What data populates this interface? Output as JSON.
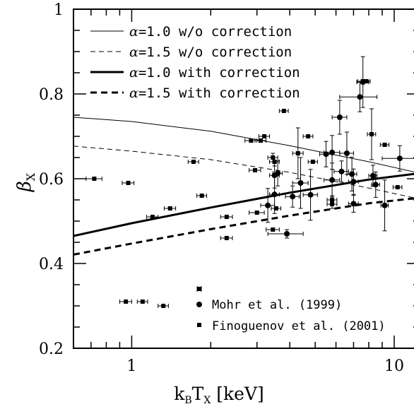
{
  "chart_data": {
    "type": "scatter",
    "xscale": "log",
    "xlim": [
      0.6,
      12.5
    ],
    "ylim": [
      0.2,
      1.0
    ],
    "xticks_major": [
      1,
      10
    ],
    "xtick_labels": [
      "1",
      "10"
    ],
    "yticks_major": [
      0.2,
      0.4,
      0.6,
      0.8,
      1.0
    ],
    "ytick_labels": [
      "0.2",
      "0.4",
      "0.6",
      "0.8",
      "1"
    ],
    "xlabel_parts": {
      "k": "k",
      "b": "B",
      "t": "T",
      "x": "X",
      "unit": " [keV]"
    },
    "ylabel_parts": {
      "beta": "β",
      "x": "X"
    },
    "legend": {
      "alpha_symbol": "α",
      "entries": [
        {
          "text": "=1.0 w/o correction",
          "style": "thin-solid"
        },
        {
          "text": "=1.5 w/o correction",
          "style": "thin-dashed"
        },
        {
          "text": "=1.0 with correction",
          "style": "thick-solid"
        },
        {
          "text": "=1.5 with correction",
          "style": "thick-dashed"
        }
      ],
      "placement": "top-left"
    },
    "marker_key": [
      {
        "marker": "circle",
        "text": "Mohr et al. (1999)"
      },
      {
        "marker": "square",
        "text": "Finoguenov et al. (2001)"
      }
    ],
    "curves": [
      {
        "style": "thin-solid",
        "x": [
          0.6,
          1,
          2,
          4,
          8,
          12.5
        ],
        "y": [
          0.745,
          0.735,
          0.712,
          0.678,
          0.64,
          0.613
        ]
      },
      {
        "style": "thin-dashed",
        "x": [
          0.6,
          1,
          2,
          4,
          8,
          12.5
        ],
        "y": [
          0.677,
          0.665,
          0.645,
          0.615,
          0.578,
          0.552
        ]
      },
      {
        "style": "thick-solid",
        "x": [
          0.6,
          1,
          2,
          4,
          8,
          12.5
        ],
        "y": [
          0.465,
          0.495,
          0.532,
          0.567,
          0.598,
          0.613
        ]
      },
      {
        "style": "thick-dashed",
        "x": [
          0.6,
          1,
          2,
          4,
          8,
          12.5
        ],
        "y": [
          0.421,
          0.447,
          0.481,
          0.513,
          0.542,
          0.555
        ]
      }
    ],
    "series": [
      {
        "marker": "circle",
        "points": [
          {
            "x": 3.5,
            "y": 0.608,
            "xe": 0.15,
            "ye": 0.03
          },
          {
            "x": 3.6,
            "y": 0.613,
            "xe": 0.15,
            "ye": 0.03
          },
          {
            "x": 3.5,
            "y": 0.563,
            "xe": 0.15,
            "ye": 0.045
          },
          {
            "x": 3.3,
            "y": 0.537,
            "xe": 0.2,
            "ye": 0.04
          },
          {
            "x": 3.9,
            "y": 0.47,
            "xe": 0.6,
            "ye": 0.01
          },
          {
            "x": 4.1,
            "y": 0.558,
            "xe": 0.25,
            "ye": 0.025
          },
          {
            "x": 4.4,
            "y": 0.59,
            "xe": 0.3,
            "ye": 0.06
          },
          {
            "x": 4.8,
            "y": 0.562,
            "xe": 0.3,
            "ye": 0.06
          },
          {
            "x": 5.5,
            "y": 0.658,
            "xe": 0.3,
            "ye": 0.03
          },
          {
            "x": 5.8,
            "y": 0.662,
            "xe": 0.4,
            "ye": 0.04
          },
          {
            "x": 5.8,
            "y": 0.597,
            "xe": 0.4,
            "ye": 0.04
          },
          {
            "x": 6.2,
            "y": 0.745,
            "xe": 0.4,
            "ye": 0.04
          },
          {
            "x": 6.3,
            "y": 0.617,
            "xe": 0.4,
            "ye": 0.025
          },
          {
            "x": 6.6,
            "y": 0.66,
            "xe": 0.4,
            "ye": 0.05
          },
          {
            "x": 6.9,
            "y": 0.611,
            "xe": 0.3,
            "ye": 0.04
          },
          {
            "x": 7.0,
            "y": 0.541,
            "xe": 0.3,
            "ye": 0.02
          },
          {
            "x": 7.0,
            "y": 0.593,
            "xe": 0.3,
            "ye": 0.03
          },
          {
            "x": 7.4,
            "y": 0.793,
            "xe": 1.2,
            "ye": 0.035
          },
          {
            "x": 7.6,
            "y": 0.828,
            "xe": 0.4,
            "ye": 0.06
          },
          {
            "x": 8.3,
            "y": 0.607,
            "xe": 0.3,
            "ye": 0.025
          },
          {
            "x": 8.5,
            "y": 0.586,
            "xe": 0.3,
            "ye": 0.03
          },
          {
            "x": 9.2,
            "y": 0.537,
            "xe": 0.3,
            "ye": 0.06
          },
          {
            "x": 10.5,
            "y": 0.648,
            "xe": 1.5,
            "ye": 0.03
          }
        ]
      },
      {
        "marker": "square",
        "points": [
          {
            "x": 0.72,
            "y": 0.6,
            "xe": 0.05,
            "ye": 0.0
          },
          {
            "x": 0.95,
            "y": 0.31,
            "xe": 0.05,
            "ye": 0.0
          },
          {
            "x": 0.97,
            "y": 0.59,
            "xe": 0.05,
            "ye": 0.0
          },
          {
            "x": 1.1,
            "y": 0.31,
            "xe": 0.05,
            "ye": 0.0
          },
          {
            "x": 1.2,
            "y": 0.51,
            "xe": 0.06,
            "ye": 0.0
          },
          {
            "x": 1.32,
            "y": 0.3,
            "xe": 0.06,
            "ye": 0.0
          },
          {
            "x": 1.4,
            "y": 0.53,
            "xe": 0.07,
            "ye": 0.0
          },
          {
            "x": 1.72,
            "y": 0.64,
            "xe": 0.08,
            "ye": 0.0
          },
          {
            "x": 1.85,
            "y": 0.56,
            "xe": 0.08,
            "ye": 0.0
          },
          {
            "x": 2.3,
            "y": 0.51,
            "xe": 0.12,
            "ye": 0.0
          },
          {
            "x": 2.3,
            "y": 0.46,
            "xe": 0.12,
            "ye": 0.0
          },
          {
            "x": 2.85,
            "y": 0.69,
            "xe": 0.15,
            "ye": 0.0
          },
          {
            "x": 2.95,
            "y": 0.62,
            "xe": 0.15,
            "ye": 0.0
          },
          {
            "x": 3.0,
            "y": 0.52,
            "xe": 0.2,
            "ye": 0.0
          },
          {
            "x": 3.1,
            "y": 0.69,
            "xe": 0.15,
            "ye": 0.0
          },
          {
            "x": 3.2,
            "y": 0.7,
            "xe": 0.15,
            "ye": 0.0
          },
          {
            "x": 3.45,
            "y": 0.65,
            "xe": 0.15,
            "ye": 0.01
          },
          {
            "x": 3.5,
            "y": 0.64,
            "xe": 0.15,
            "ye": 0.01
          },
          {
            "x": 3.45,
            "y": 0.48,
            "xe": 0.2,
            "ye": 0.0
          },
          {
            "x": 3.55,
            "y": 0.53,
            "xe": 0.15,
            "ye": 0.0
          },
          {
            "x": 3.8,
            "y": 0.76,
            "xe": 0.15,
            "ye": 0.0
          },
          {
            "x": 4.3,
            "y": 0.66,
            "xe": 0.2,
            "ye": 0.06
          },
          {
            "x": 4.7,
            "y": 0.7,
            "xe": 0.2,
            "ye": 0.0
          },
          {
            "x": 4.9,
            "y": 0.64,
            "xe": 0.2,
            "ye": 0.0
          },
          {
            "x": 5.8,
            "y": 0.55,
            "xe": 0.25,
            "ye": 0.01
          },
          {
            "x": 5.8,
            "y": 0.54,
            "xe": 0.25,
            "ye": 0.01
          },
          {
            "x": 7.6,
            "y": 0.83,
            "xe": 0.35,
            "ye": 0.0
          },
          {
            "x": 7.8,
            "y": 0.83,
            "xe": 0.3,
            "ye": 0.0
          },
          {
            "x": 8.2,
            "y": 0.705,
            "xe": 0.3,
            "ye": 0.06
          },
          {
            "x": 9.2,
            "y": 0.68,
            "xe": 0.35,
            "ye": 0.0
          },
          {
            "x": 10.3,
            "y": 0.58,
            "xe": 0.4,
            "ye": 0.0
          }
        ]
      }
    ]
  }
}
